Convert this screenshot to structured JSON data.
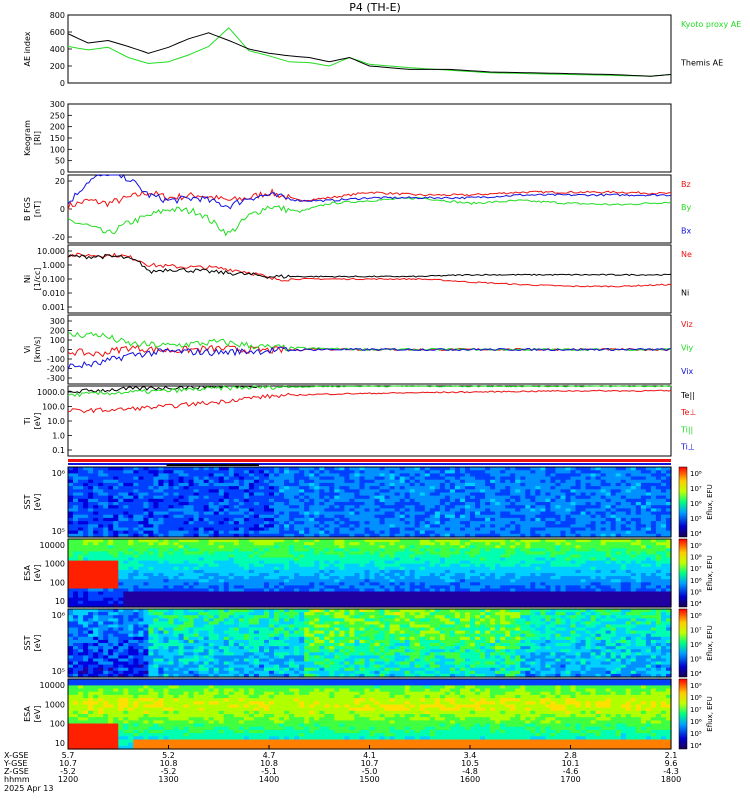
{
  "title": "P4 (TH-E)",
  "date_label": "2025 Apr 13",
  "colors": {
    "green": "#22dd22",
    "red": "#ee1111",
    "blue": "#1111dd",
    "black": "#000000"
  },
  "ephemeris": {
    "labels": [
      "X-GSE",
      "Y-GSE",
      "Z-GSE",
      "hhmm"
    ],
    "columns": [
      {
        "x": "5.7",
        "y": "10.7",
        "z": "-5.2",
        "t": "1200"
      },
      {
        "x": "5.2",
        "y": "10.8",
        "z": "-5.2",
        "t": "1300"
      },
      {
        "x": "4.7",
        "y": "10.8",
        "z": "-5.1",
        "t": "1400"
      },
      {
        "x": "4.1",
        "y": "10.7",
        "z": "-5.0",
        "t": "1500"
      },
      {
        "x": "3.4",
        "y": "10.5",
        "z": "-4.8",
        "t": "1600"
      },
      {
        "x": "2.8",
        "y": "10.1",
        "z": "-4.6",
        "t": "1700"
      },
      {
        "x": "2.1",
        "y": "9.6",
        "z": "-4.3",
        "t": "1800"
      }
    ]
  },
  "chart_data": [
    {
      "type": "line",
      "ylabel": "AE index",
      "ylim": [
        0,
        800
      ],
      "yticks": [
        "0",
        "200",
        "400",
        "600",
        "800"
      ],
      "xlim_hhmm": [
        "1200",
        "1800"
      ],
      "series": [
        {
          "name": "Kyoto proxy AE",
          "x": [
            12.0,
            12.2,
            12.4,
            12.6,
            12.8,
            13.0,
            13.2,
            13.4,
            13.6,
            13.8,
            14.0,
            14.2,
            14.4,
            14.6,
            14.8,
            15.0,
            15.4,
            15.8,
            16.2,
            16.6,
            17.0,
            17.4,
            17.8,
            18.0
          ],
          "values": [
            430,
            390,
            420,
            300,
            230,
            250,
            330,
            430,
            650,
            380,
            320,
            250,
            240,
            200,
            300,
            220,
            180,
            150,
            120,
            110,
            100,
            90,
            80,
            100
          ]
        },
        {
          "name": "Themis AE",
          "x": [
            12.0,
            12.2,
            12.4,
            12.6,
            12.8,
            13.0,
            13.2,
            13.4,
            13.6,
            13.8,
            14.0,
            14.2,
            14.4,
            14.6,
            14.8,
            15.0,
            15.4,
            15.8,
            16.2,
            16.6,
            17.0,
            17.4,
            17.8,
            18.0
          ],
          "values": [
            580,
            470,
            500,
            430,
            350,
            420,
            520,
            590,
            500,
            400,
            350,
            320,
            300,
            250,
            300,
            200,
            160,
            160,
            130,
            120,
            110,
            100,
            80,
            100
          ]
        }
      ],
      "legend": [
        "Kyoto proxy AE",
        "Themis AE"
      ]
    },
    {
      "type": "line",
      "ylabel": "Keogram",
      "y_unit": "[Rl]",
      "ylim": [
        0,
        300
      ],
      "yticks": [
        "0",
        "50",
        "100",
        "150",
        "200",
        "250",
        "300"
      ],
      "series": []
    },
    {
      "type": "line",
      "ylabel": "B FGS",
      "y_unit": "[nT]",
      "yticks": [
        "20",
        "0",
        "-20"
      ],
      "series": [
        {
          "name": "Bz",
          "x": [
            12.0,
            12.2,
            12.4,
            12.6,
            12.8,
            13.0,
            13.3,
            13.6,
            13.8,
            14.0,
            14.3,
            14.6,
            15.0,
            15.5,
            16.0,
            16.5,
            17.0,
            17.5,
            18.0
          ],
          "values": [
            2,
            6,
            4,
            8,
            12,
            8,
            10,
            6,
            8,
            12,
            6,
            8,
            12,
            10,
            10,
            12,
            12,
            12,
            11
          ]
        },
        {
          "name": "By",
          "x": [
            12.0,
            12.2,
            12.4,
            12.6,
            12.8,
            13.0,
            13.3,
            13.6,
            13.8,
            14.0,
            14.3,
            14.6,
            15.0,
            15.5,
            16.0,
            16.5,
            17.0,
            17.5,
            18.0
          ],
          "values": [
            -8,
            -12,
            -18,
            -10,
            -5,
            0,
            -2,
            -18,
            -5,
            2,
            -2,
            4,
            6,
            8,
            4,
            6,
            4,
            3,
            5
          ]
        },
        {
          "name": "Bx",
          "x": [
            12.0,
            12.2,
            12.4,
            12.6,
            12.8,
            13.0,
            13.3,
            13.6,
            13.8,
            14.0,
            14.3,
            14.6,
            15.0,
            15.5,
            16.0,
            16.5,
            17.0,
            17.5,
            18.0
          ],
          "values": [
            4,
            20,
            26,
            22,
            10,
            6,
            8,
            2,
            8,
            10,
            6,
            6,
            8,
            8,
            8,
            10,
            10,
            10,
            10
          ]
        }
      ],
      "legend": [
        "Bz",
        "By",
        "Bx"
      ]
    },
    {
      "type": "line",
      "ylabel": "Ni",
      "y_unit": "[1/cc]",
      "scale": "log",
      "yticks": [
        "10.000",
        "1.000",
        "0.100",
        "0.010",
        "0.001"
      ],
      "series": [
        {
          "name": "Ne",
          "x": [
            12.0,
            12.5,
            12.8,
            13.0,
            13.5,
            14.0,
            14.5,
            15.0,
            15.5,
            16.0,
            16.5,
            17.0,
            17.5,
            18.0
          ],
          "values": [
            5,
            5,
            1,
            0.8,
            0.6,
            0.1,
            0.1,
            0.1,
            0.1,
            0.06,
            0.04,
            0.03,
            0.03,
            0.04
          ]
        },
        {
          "name": "Ni",
          "x": [
            12.0,
            12.5,
            12.8,
            13.0,
            13.5,
            14.0,
            14.5,
            15.0,
            15.5,
            16.0,
            16.5,
            17.0,
            17.5,
            18.0
          ],
          "values": [
            4,
            4,
            0.3,
            0.5,
            0.3,
            0.15,
            0.15,
            0.15,
            0.15,
            0.2,
            0.2,
            0.2,
            0.2,
            0.2
          ]
        }
      ],
      "legend": [
        "Ne",
        "Ni"
      ]
    },
    {
      "type": "line",
      "ylabel": "Vi",
      "y_unit": "[km/s]",
      "yticks": [
        "300",
        "200",
        "100",
        "0",
        "-100",
        "-200",
        "-300"
      ],
      "series": [
        {
          "name": "Viz",
          "x": [
            12.0,
            12.3,
            12.6,
            13.0,
            13.5,
            14.0,
            14.5,
            15.0,
            16.0,
            17.0,
            18.0
          ],
          "values": [
            -20,
            -50,
            20,
            -10,
            10,
            -10,
            5,
            0,
            0,
            0,
            0
          ]
        },
        {
          "name": "Viy",
          "x": [
            12.0,
            12.3,
            12.6,
            13.0,
            13.5,
            14.0,
            14.5,
            15.0,
            16.0,
            17.0,
            18.0
          ],
          "values": [
            150,
            160,
            60,
            40,
            80,
            20,
            10,
            0,
            0,
            0,
            0
          ]
        },
        {
          "name": "Vix",
          "x": [
            12.0,
            12.3,
            12.6,
            13.0,
            13.5,
            14.0,
            14.5,
            15.0,
            16.0,
            17.0,
            18.0
          ],
          "values": [
            -180,
            -150,
            -60,
            -20,
            -30,
            -10,
            0,
            0,
            0,
            0,
            0
          ]
        }
      ],
      "legend": [
        "Viz",
        "Viy",
        "Vix"
      ]
    },
    {
      "type": "line",
      "ylabel": "Ti",
      "y_unit": "[eV]",
      "scale": "log",
      "yticks": [
        "1000.0",
        "100.0",
        "10.0",
        "1.0",
        "0.1"
      ],
      "series": [
        {
          "name": "Te||",
          "x": [
            12.0,
            12.5,
            13.0,
            13.5,
            14.0,
            14.5,
            15.0,
            15.5,
            16.0,
            16.5,
            17.0,
            17.5,
            18.0
          ],
          "values": [
            1000,
            1500,
            2000,
            2500,
            3000,
            3000,
            3000,
            3000,
            3000,
            3000,
            3000,
            3000,
            3000
          ]
        },
        {
          "name": "Ti||",
          "x": [
            12.0,
            12.5,
            13.0,
            13.5,
            14.0,
            14.5,
            15.0,
            15.5,
            16.0,
            16.5,
            17.0,
            17.5,
            18.0
          ],
          "values": [
            600,
            900,
            1200,
            1800,
            2200,
            2400,
            2500,
            2500,
            2500,
            2500,
            2500,
            2500,
            2500
          ]
        },
        {
          "name": "Te⊥",
          "x": [
            12.0,
            12.5,
            13.0,
            13.5,
            14.0,
            14.5,
            15.0,
            15.5,
            16.0,
            16.5,
            17.0,
            17.5,
            18.0
          ],
          "values": [
            50,
            60,
            100,
            200,
            500,
            700,
            800,
            900,
            1000,
            1100,
            1200,
            1200,
            1200
          ]
        }
      ],
      "legend": [
        "Te||",
        "Te⊥",
        "Ti||",
        "Ti⊥"
      ]
    },
    {
      "type": "heatmap",
      "ylabel": "SST",
      "y_unit": "[eV]",
      "yticks": [
        "10⁶",
        "10⁵"
      ],
      "colorbar": {
        "label": "Eflux, EFU",
        "ticks": [
          "10⁸",
          "10⁷",
          "10⁶",
          "10⁵",
          "10⁴"
        ]
      }
    },
    {
      "type": "heatmap",
      "ylabel": "ESA",
      "y_unit": "[eV]",
      "yticks": [
        "10000",
        "1000",
        "100",
        "10"
      ],
      "colorbar": {
        "label": "Eflux, EFU",
        "ticks": [
          "10⁹",
          "10⁸",
          "10⁷",
          "10⁶",
          "10⁵",
          "10⁴"
        ]
      }
    },
    {
      "type": "heatmap",
      "ylabel": "SST",
      "y_unit": "[eV]",
      "yticks": [
        "10⁶",
        "10⁵"
      ],
      "colorbar": {
        "label": "Eflux, EFU",
        "ticks": [
          "10⁸",
          "10⁷",
          "10⁶",
          "10⁵",
          "10⁴"
        ]
      }
    },
    {
      "type": "heatmap",
      "ylabel": "ESA",
      "y_unit": "[eV]",
      "yticks": [
        "10000",
        "1000",
        "100",
        "10"
      ],
      "colorbar": {
        "label": "Eflux, EFU",
        "ticks": [
          "10⁹",
          "10⁸",
          "10⁷",
          "10⁶",
          "10⁵",
          "10⁴"
        ]
      }
    }
  ]
}
